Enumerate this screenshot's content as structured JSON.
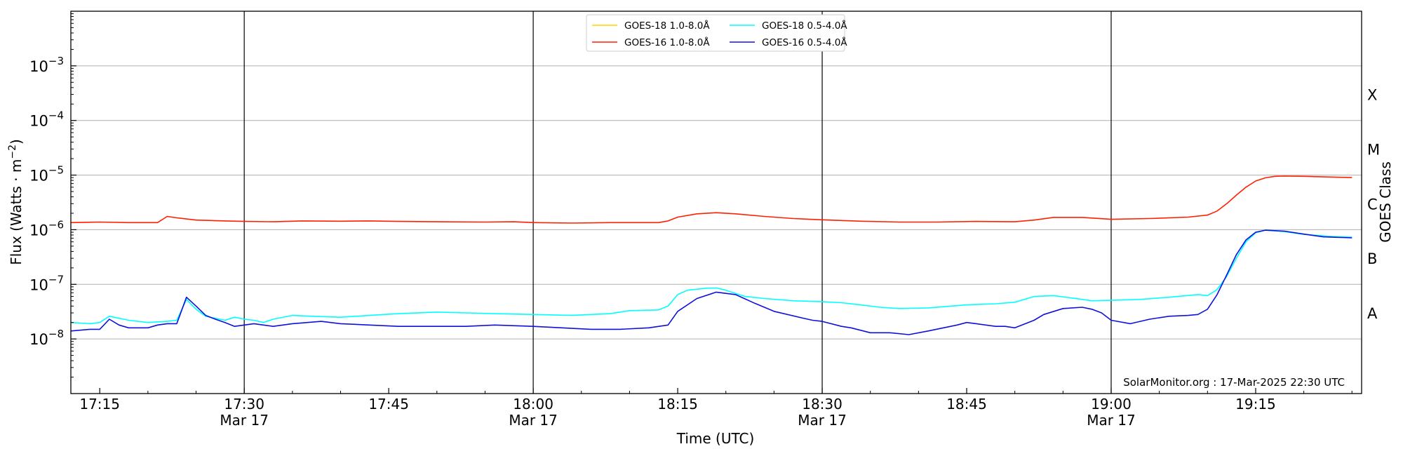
{
  "chart_data": {
    "type": "line",
    "ylabel": "Flux (Watts · m⁻²)",
    "ylabel_parts": {
      "main": "Flux (Watts · m",
      "sup": "−2",
      "close": ")"
    },
    "xlabel": "Time (UTC)",
    "right_label": "GOES Class",
    "watermark": "SolarMonitor.org : 17-Mar-2025 22:30 UTC",
    "yscale": "log",
    "ylim": [
      1e-09,
      0.01
    ],
    "xlim_minutes": [
      1032,
      1166
    ],
    "grid_y": true,
    "legend_position": "top-center",
    "y_ticks": [
      {
        "value": 1e-08,
        "base": "10",
        "exp": "−8"
      },
      {
        "value": 1e-07,
        "base": "10",
        "exp": "−7"
      },
      {
        "value": 1e-06,
        "base": "10",
        "exp": "−6"
      },
      {
        "value": 1e-05,
        "base": "10",
        "exp": "−5"
      },
      {
        "value": 0.0001,
        "base": "10",
        "exp": "−4"
      },
      {
        "value": 0.001,
        "base": "10",
        "exp": "−3"
      }
    ],
    "x_ticks": [
      {
        "minute": 1035,
        "label": "17:15",
        "date": ""
      },
      {
        "minute": 1050,
        "label": "17:30",
        "date": "Mar 17"
      },
      {
        "minute": 1065,
        "label": "17:45",
        "date": ""
      },
      {
        "minute": 1080,
        "label": "18:00",
        "date": "Mar 17"
      },
      {
        "minute": 1095,
        "label": "18:15",
        "date": ""
      },
      {
        "minute": 1110,
        "label": "18:30",
        "date": "Mar 17"
      },
      {
        "minute": 1125,
        "label": "18:45",
        "date": ""
      },
      {
        "minute": 1140,
        "label": "19:00",
        "date": "Mar 17"
      },
      {
        "minute": 1155,
        "label": "19:15",
        "date": ""
      }
    ],
    "vertical_lines": [
      1050,
      1080,
      1110,
      1140
    ],
    "goes_classes": [
      {
        "label": "A",
        "flux": 3e-08
      },
      {
        "label": "B",
        "flux": 3e-07
      },
      {
        "label": "C",
        "flux": 3e-06
      },
      {
        "label": "M",
        "flux": 3e-05
      },
      {
        "label": "X",
        "flux": 0.0003
      }
    ],
    "series": [
      {
        "name": "GOES-18 1.0-8.0Å",
        "color": "#ffd700",
        "x": [],
        "y": []
      },
      {
        "name": "GOES-16 1.0-8.0Å",
        "color": "#ff2000",
        "x": [
          1032,
          1035,
          1038,
          1041,
          1042,
          1043,
          1045,
          1048,
          1050,
          1053,
          1056,
          1060,
          1063,
          1066,
          1070,
          1075,
          1078,
          1080,
          1084,
          1088,
          1093,
          1094,
          1095,
          1097,
          1099,
          1101,
          1104,
          1107,
          1110,
          1114,
          1118,
          1122,
          1126,
          1130,
          1132,
          1134,
          1137,
          1140,
          1144,
          1148,
          1150,
          1151,
          1152,
          1153,
          1154,
          1155,
          1156,
          1157,
          1158,
          1160,
          1163,
          1165
        ],
        "y": [
          1.35e-06,
          1.38e-06,
          1.35e-06,
          1.35e-06,
          1.75e-06,
          1.65e-06,
          1.5e-06,
          1.45e-06,
          1.42e-06,
          1.4e-06,
          1.45e-06,
          1.43e-06,
          1.45e-06,
          1.42e-06,
          1.4e-06,
          1.38e-06,
          1.4e-06,
          1.35e-06,
          1.32e-06,
          1.35e-06,
          1.35e-06,
          1.45e-06,
          1.7e-06,
          1.95e-06,
          2.05e-06,
          1.95e-06,
          1.75e-06,
          1.6e-06,
          1.52e-06,
          1.43e-06,
          1.38e-06,
          1.38e-06,
          1.42e-06,
          1.4e-06,
          1.5e-06,
          1.68e-06,
          1.68e-06,
          1.55e-06,
          1.6e-06,
          1.7e-06,
          1.85e-06,
          2.2e-06,
          3e-06,
          4.3e-06,
          6e-06,
          7.8e-06,
          8.9e-06,
          9.5e-06,
          9.6e-06,
          9.5e-06,
          9.2e-06,
          9e-06
        ]
      },
      {
        "name": "GOES-18 0.5-4.0Å",
        "color": "#00ffff",
        "x": [
          1032,
          1034,
          1035,
          1036,
          1038,
          1040,
          1042,
          1043,
          1044,
          1045,
          1046,
          1048,
          1049,
          1050,
          1051,
          1052,
          1053,
          1055,
          1057,
          1060,
          1063,
          1066,
          1070,
          1073,
          1076,
          1080,
          1084,
          1088,
          1090,
          1093,
          1094,
          1095,
          1096,
          1098,
          1099,
          1100,
          1102,
          1104,
          1107,
          1110,
          1112,
          1114,
          1116,
          1118,
          1121,
          1125,
          1128,
          1130,
          1132,
          1134,
          1136,
          1138,
          1140,
          1143,
          1146,
          1149,
          1150,
          1151,
          1152,
          1153,
          1154,
          1155,
          1156,
          1158,
          1160,
          1163,
          1165
        ],
        "y": [
          2e-08,
          1.9e-08,
          2e-08,
          2.6e-08,
          2.2e-08,
          2e-08,
          2.1e-08,
          2.2e-08,
          5.3e-08,
          3.5e-08,
          2.6e-08,
          2.2e-08,
          2.5e-08,
          2.3e-08,
          2.2e-08,
          2e-08,
          2.3e-08,
          2.7e-08,
          2.6e-08,
          2.5e-08,
          2.7e-08,
          2.9e-08,
          3.1e-08,
          3e-08,
          2.9e-08,
          2.8e-08,
          2.7e-08,
          2.9e-08,
          3.3e-08,
          3.4e-08,
          4e-08,
          6.5e-08,
          7.8e-08,
          8.5e-08,
          8.6e-08,
          7.8e-08,
          6e-08,
          5.5e-08,
          5e-08,
          4.8e-08,
          4.6e-08,
          4.2e-08,
          3.8e-08,
          3.6e-08,
          3.7e-08,
          4.2e-08,
          4.4e-08,
          4.7e-08,
          6e-08,
          6.2e-08,
          5.6e-08,
          5e-08,
          5.1e-08,
          5.3e-08,
          5.8e-08,
          6.5e-08,
          6.2e-08,
          8e-08,
          1.4e-07,
          3e-07,
          6e-07,
          8.8e-07,
          9.8e-07,
          9.2e-07,
          8.2e-07,
          7.5e-07,
          7.3e-07
        ]
      },
      {
        "name": "GOES-16 0.5-4.0Å",
        "color": "#1010dd",
        "x": [
          1032,
          1034,
          1035,
          1036,
          1037,
          1038,
          1040,
          1041,
          1042,
          1043,
          1044,
          1045,
          1046,
          1047,
          1048,
          1049,
          1050,
          1051,
          1052,
          1053,
          1055,
          1058,
          1060,
          1063,
          1066,
          1070,
          1073,
          1076,
          1080,
          1083,
          1086,
          1089,
          1092,
          1094,
          1095,
          1097,
          1099,
          1101,
          1103,
          1105,
          1108,
          1109,
          1110,
          1112,
          1113,
          1115,
          1117,
          1119,
          1121,
          1124,
          1125,
          1126,
          1128,
          1129,
          1130,
          1132,
          1133,
          1135,
          1137,
          1138,
          1139,
          1140,
          1142,
          1144,
          1146,
          1148,
          1149,
          1150,
          1151,
          1152,
          1153,
          1154,
          1155,
          1156,
          1158,
          1160,
          1162,
          1165
        ],
        "y": [
          1.4e-08,
          1.5e-08,
          1.5e-08,
          2.3e-08,
          1.8e-08,
          1.6e-08,
          1.6e-08,
          1.8e-08,
          1.9e-08,
          1.9e-08,
          5.8e-08,
          4e-08,
          2.7e-08,
          2.3e-08,
          2e-08,
          1.7e-08,
          1.8e-08,
          1.9e-08,
          1.8e-08,
          1.7e-08,
          1.9e-08,
          2.1e-08,
          1.9e-08,
          1.8e-08,
          1.7e-08,
          1.7e-08,
          1.7e-08,
          1.8e-08,
          1.7e-08,
          1.6e-08,
          1.5e-08,
          1.5e-08,
          1.6e-08,
          1.8e-08,
          3.2e-08,
          5.5e-08,
          7.2e-08,
          6.5e-08,
          4.5e-08,
          3.2e-08,
          2.4e-08,
          2.2e-08,
          2.1e-08,
          1.7e-08,
          1.6e-08,
          1.3e-08,
          1.3e-08,
          1.2e-08,
          1.4e-08,
          1.8e-08,
          2e-08,
          1.9e-08,
          1.7e-08,
          1.7e-08,
          1.6e-08,
          2.2e-08,
          2.8e-08,
          3.6e-08,
          3.8e-08,
          3.5e-08,
          3e-08,
          2.2e-08,
          1.9e-08,
          2.3e-08,
          2.6e-08,
          2.7e-08,
          2.8e-08,
          3.5e-08,
          6.5e-08,
          1.5e-07,
          3.5e-07,
          6.5e-07,
          9e-07,
          9.8e-07,
          9.4e-07,
          8.3e-07,
          7.4e-07,
          7.1e-07
        ]
      }
    ]
  }
}
